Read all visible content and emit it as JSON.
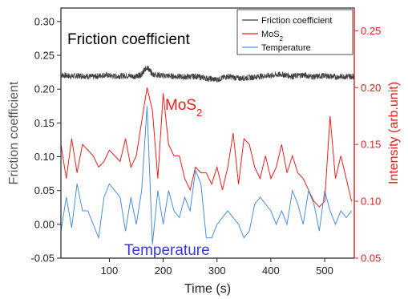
{
  "chart_data": {
    "type": "line",
    "xlabel": "Time (s)",
    "ylabel_left": "Friction coefficient",
    "ylabel_right": "Intensity (arb.unit)",
    "xlim": [
      10,
      555
    ],
    "ylim_left": [
      -0.05,
      0.32
    ],
    "ylim_right": [
      0.05,
      0.27
    ],
    "x_ticks": [
      100,
      200,
      300,
      400,
      500
    ],
    "y_left_ticks": [
      -0.05,
      0.0,
      0.05,
      0.1,
      0.15,
      0.2,
      0.25,
      0.3
    ],
    "y_left_tick_labels": [
      "-0.05",
      "0.00",
      "0.05",
      "0.10",
      "0.15",
      "0.20",
      "0.25",
      "0.30"
    ],
    "y_right_ticks": [
      0.05,
      0.1,
      0.15,
      0.2,
      0.25
    ],
    "y_right_tick_labels": [
      "0.05",
      "0.10",
      "0.15",
      "0.20",
      "0.25"
    ],
    "grid": false,
    "legend_position": "top-right",
    "annotations": [
      {
        "text": "Friction coefficient",
        "color": "#000000"
      },
      {
        "text": "MoS",
        "sub": "2",
        "color": "#e8201c"
      },
      {
        "text": "Temperature",
        "color": "#3a3ad6"
      }
    ],
    "series": [
      {
        "name": "Friction coefficient",
        "axis": "left",
        "color": "#404040",
        "x": [
          10,
          30,
          50,
          70,
          90,
          110,
          130,
          150,
          160,
          170,
          180,
          200,
          220,
          240,
          260,
          280,
          300,
          320,
          340,
          360,
          380,
          400,
          420,
          440,
          460,
          480,
          500,
          520,
          540,
          555
        ],
        "y": [
          0.221,
          0.219,
          0.22,
          0.218,
          0.221,
          0.219,
          0.22,
          0.219,
          0.222,
          0.233,
          0.222,
          0.22,
          0.219,
          0.218,
          0.219,
          0.216,
          0.214,
          0.219,
          0.216,
          0.217,
          0.219,
          0.22,
          0.222,
          0.219,
          0.221,
          0.218,
          0.22,
          0.218,
          0.219,
          0.219
        ]
      },
      {
        "name": "MoS2",
        "name_sub": "2",
        "axis": "right",
        "color": "#e8201c",
        "x": [
          10,
          20,
          30,
          40,
          50,
          60,
          70,
          80,
          90,
          100,
          110,
          120,
          130,
          140,
          150,
          160,
          170,
          180,
          190,
          200,
          210,
          220,
          230,
          240,
          250,
          260,
          270,
          280,
          290,
          300,
          310,
          320,
          330,
          340,
          350,
          360,
          370,
          380,
          390,
          400,
          410,
          420,
          430,
          440,
          450,
          460,
          470,
          480,
          490,
          500,
          510,
          520,
          530,
          540,
          550
        ],
        "y": [
          0.15,
          0.12,
          0.155,
          0.125,
          0.15,
          0.145,
          0.14,
          0.13,
          0.135,
          0.145,
          0.14,
          0.135,
          0.155,
          0.13,
          0.14,
          0.17,
          0.2,
          0.18,
          0.12,
          0.195,
          0.15,
          0.14,
          0.14,
          0.12,
          0.11,
          0.13,
          0.125,
          0.125,
          0.115,
          0.13,
          0.11,
          0.13,
          0.16,
          0.115,
          0.155,
          0.15,
          0.13,
          0.12,
          0.14,
          0.12,
          0.13,
          0.15,
          0.125,
          0.14,
          0.125,
          0.12,
          0.11,
          0.1,
          0.095,
          0.1,
          0.175,
          0.12,
          0.14,
          0.12,
          0.1
        ]
      },
      {
        "name": "Temperature",
        "axis": "left",
        "color": "#4a90d9",
        "x": [
          10,
          20,
          30,
          40,
          50,
          60,
          70,
          80,
          90,
          100,
          110,
          120,
          130,
          140,
          150,
          160,
          170,
          180,
          190,
          200,
          210,
          220,
          230,
          240,
          250,
          260,
          270,
          280,
          290,
          300,
          310,
          320,
          330,
          340,
          350,
          360,
          370,
          380,
          390,
          400,
          410,
          420,
          430,
          440,
          450,
          460,
          470,
          480,
          490,
          500,
          510,
          520,
          530,
          540,
          550
        ],
        "y": [
          -0.01,
          0.04,
          -0.005,
          0.06,
          0.02,
          0.02,
          0.0,
          -0.02,
          0.04,
          0.06,
          0.05,
          0.04,
          -0.01,
          0.04,
          0.0,
          0.05,
          0.175,
          -0.03,
          0.05,
          0.0,
          0.05,
          0.02,
          0.01,
          0.04,
          0.02,
          0.08,
          0.06,
          -0.02,
          -0.02,
          0.0,
          0.01,
          0.02,
          0.01,
          0.0,
          -0.02,
          -0.01,
          0.03,
          0.04,
          0.03,
          0.02,
          0.0,
          0.02,
          0.0,
          0.05,
          0.03,
          0.0,
          0.05,
          0.03,
          -0.01,
          0.05,
          0.02,
          0.0,
          0.02,
          0.01,
          0.02
        ]
      }
    ]
  }
}
